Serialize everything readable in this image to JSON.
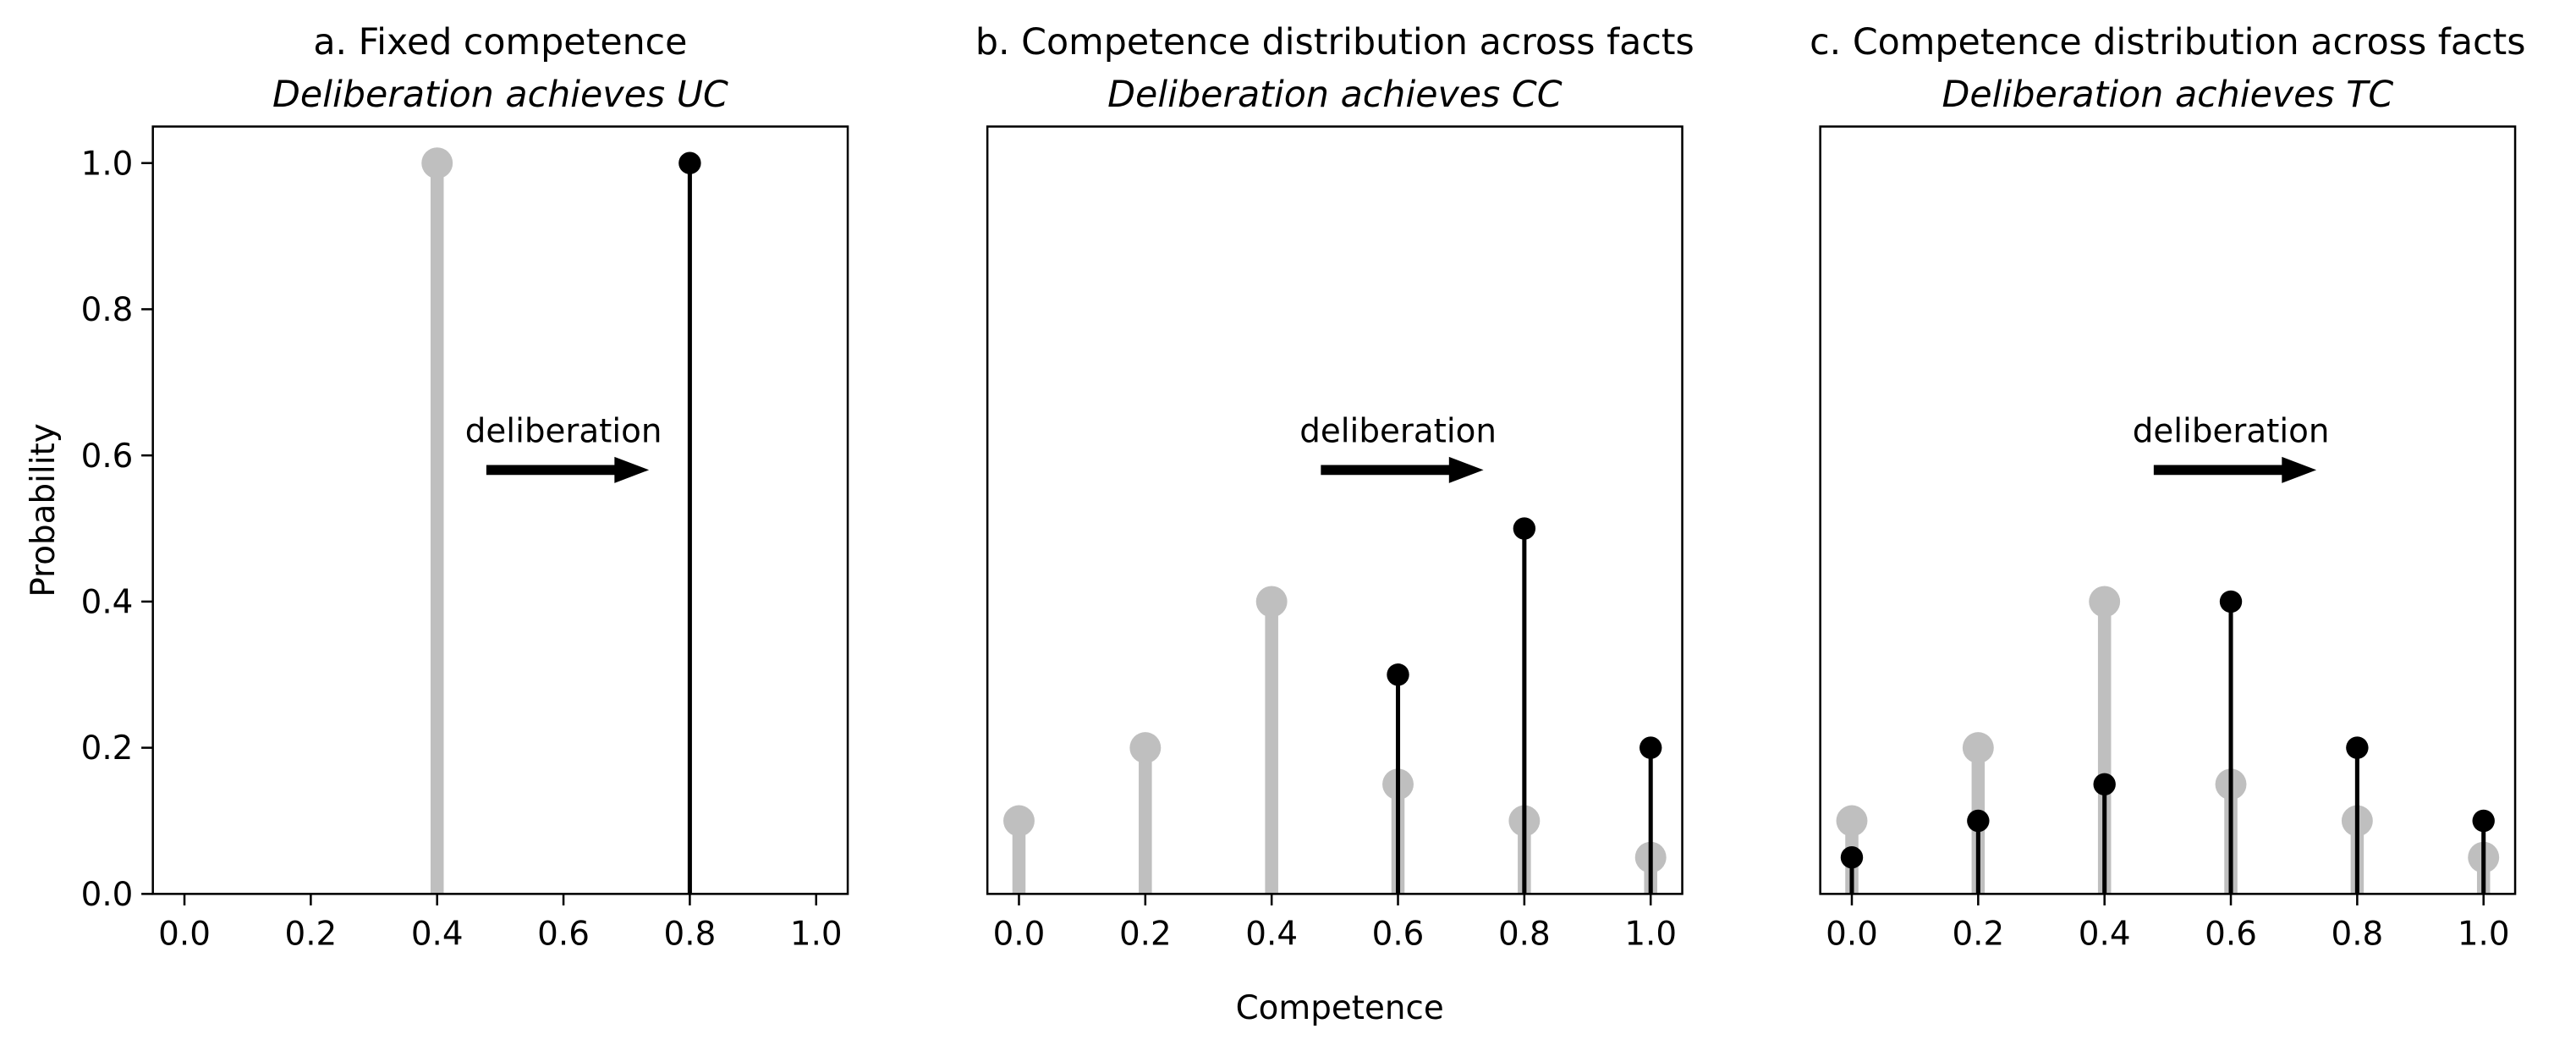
{
  "chart_data": [
    {
      "type": "stem",
      "title": "a. Fixed competence",
      "subtitle": "Deliberation achieves UC",
      "ylabel": "Probability",
      "annotation": "deliberation",
      "xlim": [
        -0.05,
        1.05
      ],
      "ylim": [
        0,
        1.05
      ],
      "xticks": [
        {
          "value": 0,
          "label": "0.0"
        },
        0.2,
        0.4,
        0.6,
        0.8,
        {
          "value": 1,
          "label": "1.0"
        }
      ],
      "yticks": [
        {
          "value": 0,
          "label": "0.0"
        },
        0.2,
        0.4,
        0.6,
        0.8,
        {
          "value": 1,
          "label": "1.0"
        }
      ],
      "series": [
        {
          "color": "#bfbfbf",
          "x": [
            0.4
          ],
          "values": [
            1.0
          ]
        },
        {
          "color": "#000000",
          "x": [
            0.8
          ],
          "values": [
            1.0
          ]
        }
      ]
    },
    {
      "type": "stem",
      "title": "b. Competence distribution across facts",
      "subtitle": "Deliberation achieves CC",
      "xlabel": "Competence",
      "annotation": "deliberation",
      "xlim": [
        -0.05,
        1.05
      ],
      "ylim": [
        0,
        1.05
      ],
      "xticks": [
        {
          "value": 0,
          "label": "0.0"
        },
        0.2,
        0.4,
        0.6,
        0.8,
        {
          "value": 1,
          "label": "1.0"
        }
      ],
      "series": [
        {
          "color": "#bfbfbf",
          "x": [
            0,
            0.2,
            0.4,
            0.6,
            0.8,
            1.0
          ],
          "values": [
            0.1,
            0.2,
            0.4,
            0.15,
            0.1,
            0.05
          ]
        },
        {
          "color": "#000000",
          "x": [
            0.6,
            0.8,
            1.0
          ],
          "values": [
            0.3,
            0.5,
            0.2
          ]
        }
      ]
    },
    {
      "type": "stem",
      "title": "c. Competence distribution across facts",
      "subtitle": "Deliberation achieves TC",
      "annotation": "deliberation",
      "xlim": [
        -0.05,
        1.05
      ],
      "ylim": [
        0,
        1.05
      ],
      "xticks": [
        {
          "value": 0,
          "label": "0.0"
        },
        0.2,
        0.4,
        0.6,
        0.8,
        {
          "value": 1,
          "label": "1.0"
        }
      ],
      "series": [
        {
          "color": "#bfbfbf",
          "x": [
            0,
            0.2,
            0.4,
            0.6,
            0.8,
            1.0
          ],
          "values": [
            0.1,
            0.2,
            0.4,
            0.15,
            0.1,
            0.05
          ]
        },
        {
          "color": "#000000",
          "x": [
            0,
            0.2,
            0.4,
            0.6,
            0.8,
            1.0
          ],
          "values": [
            0.05,
            0.1,
            0.15,
            0.4,
            0.2,
            0.1
          ]
        }
      ]
    }
  ]
}
